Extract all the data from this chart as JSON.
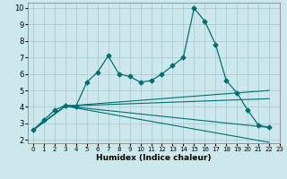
{
  "xlabel": "Humidex (Indice chaleur)",
  "bg_color": "#cce8ec",
  "grid_color": "#aaccd4",
  "line_color": "#007070",
  "xlim": [
    -0.5,
    23
  ],
  "ylim": [
    1.8,
    10.3
  ],
  "xticks": [
    0,
    1,
    2,
    3,
    4,
    5,
    6,
    7,
    8,
    9,
    10,
    11,
    12,
    13,
    14,
    15,
    16,
    17,
    18,
    19,
    20,
    21,
    22,
    23
  ],
  "yticks": [
    2,
    3,
    4,
    5,
    6,
    7,
    8,
    9,
    10
  ],
  "curve_x": [
    0,
    1,
    2,
    3,
    4,
    5,
    6,
    7,
    8,
    9,
    10,
    11,
    12,
    13,
    14,
    15,
    16,
    17,
    18,
    19,
    20,
    21,
    22
  ],
  "curve_y": [
    2.6,
    3.2,
    3.8,
    4.1,
    4.05,
    5.5,
    6.1,
    7.1,
    6.0,
    5.85,
    5.5,
    5.6,
    6.0,
    6.5,
    7.0,
    10.0,
    9.2,
    7.8,
    5.6,
    4.85,
    3.8,
    2.9,
    2.75
  ],
  "fan_lines": [
    {
      "x": [
        0,
        3,
        22
      ],
      "y": [
        2.6,
        4.05,
        5.0
      ]
    },
    {
      "x": [
        0,
        3,
        22
      ],
      "y": [
        2.6,
        4.05,
        4.5
      ]
    },
    {
      "x": [
        0,
        3,
        22
      ],
      "y": [
        2.6,
        4.05,
        2.75
      ]
    },
    {
      "x": [
        0,
        3,
        22
      ],
      "y": [
        2.6,
        4.05,
        1.85
      ]
    }
  ],
  "marker_size": 2.5,
  "lw_curve": 0.9,
  "lw_fan": 0.8,
  "xlabel_fontsize": 6.5,
  "tick_fontsize_y": 6,
  "tick_fontsize_x": 5.0
}
